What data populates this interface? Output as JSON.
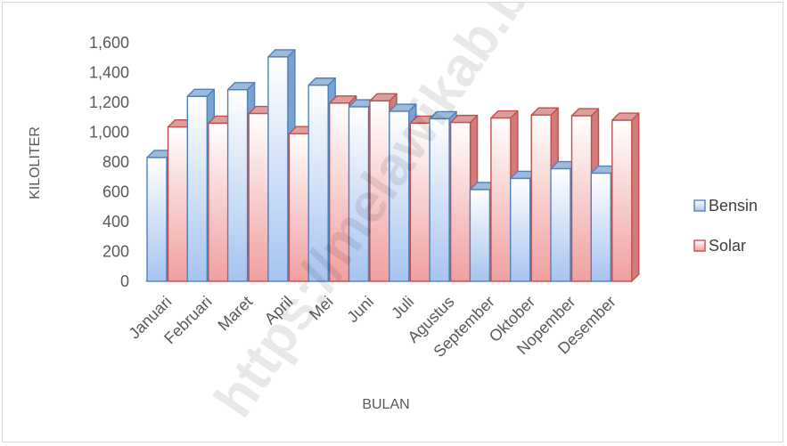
{
  "chart_data": {
    "type": "bar",
    "categories": [
      "Januari",
      "Februari",
      "Maret",
      "April",
      "Mei",
      "Juni",
      "Juli",
      "Agustus",
      "September",
      "Oktober",
      "Nopember",
      "Desember"
    ],
    "series": [
      {
        "name": "Bensin",
        "values": [
          830,
          1240,
          1285,
          1505,
          1315,
          1170,
          1140,
          1090,
          615,
          690,
          755,
          725
        ],
        "color": "#4f81bd"
      },
      {
        "name": "Solar",
        "values": [
          1035,
          1060,
          1125,
          990,
          1195,
          1210,
          1060,
          1065,
          1095,
          1115,
          1110,
          1080
        ],
        "color": "#c0504d"
      }
    ],
    "title": "",
    "xlabel": "BULAN",
    "ylabel": "KILOLITER",
    "ylim": [
      0,
      1600
    ],
    "yticks": [
      0,
      200,
      400,
      600,
      800,
      1000,
      1200,
      1400,
      1600
    ],
    "ytick_labels": [
      "0",
      "200",
      "400",
      "600",
      "800",
      "1,000",
      "1,200",
      "1,400",
      "1,600"
    ],
    "style": "3d-clustered-column",
    "legend_position": "right",
    "grid": false
  },
  "watermark": "https://melawikab.bps.go.id"
}
